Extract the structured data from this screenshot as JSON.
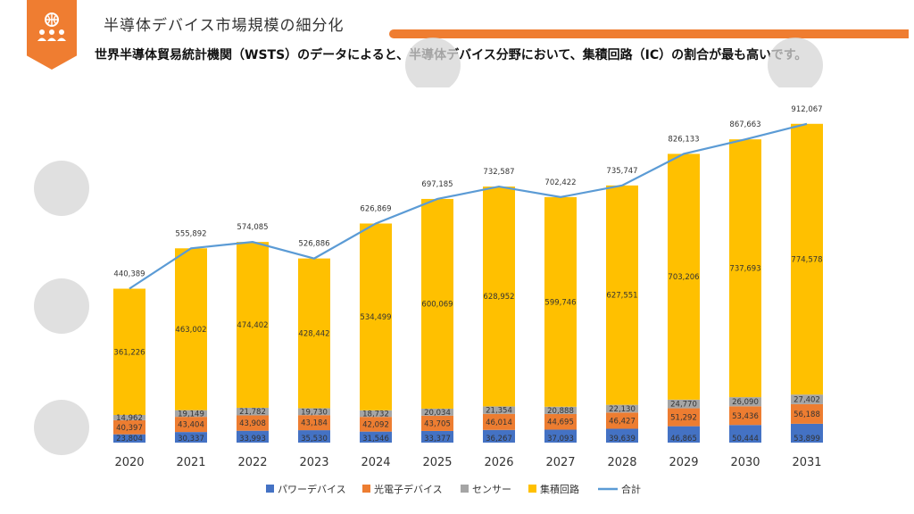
{
  "header": {
    "title": "半導体デバイス市場規模の細分化",
    "subtitle": "世界半導体貿易統計機関（WSTS）のデータによると、半導体デバイス分野において、集積回路（IC）の割合が最も高いです。",
    "logo_icon": "team-globe-icon",
    "accent_color": "#ef7d31"
  },
  "chart_data": {
    "type": "bar",
    "stacked": true,
    "categories": [
      "2020",
      "2021",
      "2022",
      "2023",
      "2024",
      "2025",
      "2026",
      "2027",
      "2028",
      "2029",
      "2030",
      "2031"
    ],
    "series": [
      {
        "name": "パワーデバイス",
        "color": "#4472c4",
        "values": [
          23804,
          30337,
          33993,
          35530,
          31546,
          33377,
          36267,
          37093,
          39639,
          46865,
          50444,
          53899
        ]
      },
      {
        "name": "光電子デバイス",
        "color": "#ed7d31",
        "values": [
          40397,
          43404,
          43908,
          43184,
          42092,
          43705,
          46014,
          44695,
          46427,
          51292,
          53436,
          56188
        ]
      },
      {
        "name": "センサー",
        "color": "#a5a5a5",
        "values": [
          14962,
          19149,
          21782,
          19730,
          18732,
          20034,
          21354,
          20888,
          22130,
          24770,
          26090,
          27402
        ]
      },
      {
        "name": "集積回路",
        "color": "#ffc000",
        "values": [
          361226,
          463002,
          474402,
          428442,
          534499,
          600069,
          628952,
          599746,
          627551,
          703206,
          737693,
          774578
        ]
      }
    ],
    "total": {
      "name": "合計",
      "color": "#5b9bd5",
      "values": [
        440389,
        555892,
        574085,
        526886,
        626869,
        697185,
        732587,
        702422,
        735747,
        826133,
        867663,
        912067
      ]
    },
    "ylim": [
      0,
      960000
    ],
    "legend_position": "bottom",
    "grid": false
  }
}
